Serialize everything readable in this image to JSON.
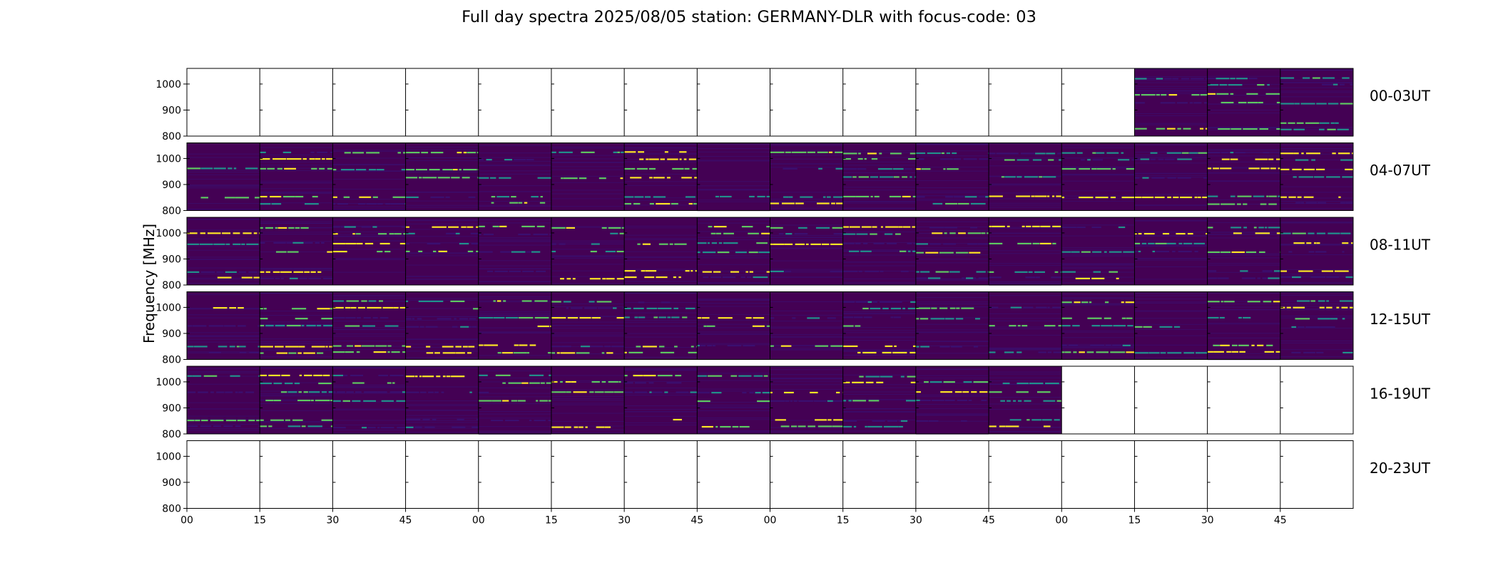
{
  "chart_data": {
    "type": "heatmap",
    "title": "Full day spectra 2025/08/05 station: GERMANY-DLR with focus-code: 03",
    "ylabel": "Frequency [MHz]",
    "xlabel": "",
    "y_ticks": [
      "800",
      "900",
      "1000"
    ],
    "ylim": [
      800,
      1060
    ],
    "x_ticks": [
      "00",
      "15",
      "30",
      "45",
      "00",
      "15",
      "30",
      "45",
      "00",
      "15",
      "30",
      "45",
      "00",
      "15",
      "30",
      "45"
    ],
    "colormap": "viridis",
    "rows": [
      {
        "label": "00-03UT",
        "has_data": [
          0,
          0,
          0,
          0,
          0,
          0,
          0,
          0,
          0,
          0,
          0,
          0,
          0,
          1,
          1,
          1
        ]
      },
      {
        "label": "04-07UT",
        "has_data": [
          1,
          1,
          1,
          1,
          1,
          1,
          1,
          1,
          1,
          1,
          1,
          1,
          1,
          1,
          1,
          1
        ]
      },
      {
        "label": "08-11UT",
        "has_data": [
          1,
          1,
          1,
          1,
          1,
          1,
          1,
          1,
          1,
          1,
          1,
          1,
          1,
          1,
          1,
          1
        ]
      },
      {
        "label": "12-15UT",
        "has_data": [
          1,
          1,
          1,
          1,
          1,
          1,
          1,
          1,
          1,
          1,
          1,
          1,
          1,
          1,
          1,
          1
        ]
      },
      {
        "label": "16-19UT",
        "has_data": [
          1,
          1,
          1,
          1,
          1,
          1,
          1,
          1,
          1,
          1,
          1,
          1,
          0,
          0,
          0,
          0
        ]
      },
      {
        "label": "20-23UT",
        "has_data": [
          0,
          0,
          0,
          0,
          0,
          0,
          0,
          0,
          0,
          0,
          0,
          0,
          0,
          0,
          0,
          0
        ]
      }
    ],
    "interference_bands_mhz": [
      1025,
      1000,
      962,
      930,
      855,
      830
    ],
    "colors": {
      "background": "#440154",
      "low": "#3b0f70",
      "mid": "#21918c",
      "high": "#5ec962",
      "peak": "#fde725"
    }
  }
}
